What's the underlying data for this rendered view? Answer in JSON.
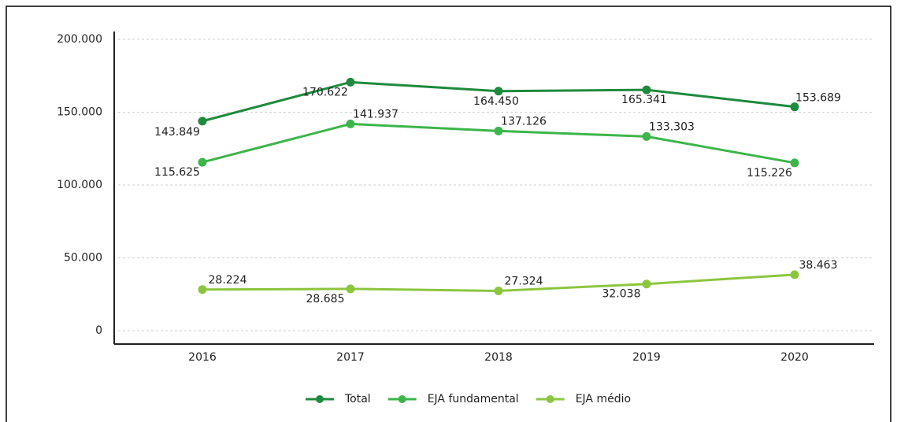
{
  "chart_data": {
    "type": "line",
    "categories": [
      "2016",
      "2017",
      "2018",
      "2019",
      "2020"
    ],
    "series": [
      {
        "name": "Total",
        "color": "#1e8a3e",
        "values": [
          143849,
          170622,
          164450,
          165341,
          153689
        ],
        "value_labels": [
          "143.849",
          "170.622",
          "164.450",
          "165.341",
          "153.689"
        ]
      },
      {
        "name": "EJA fundamental",
        "color": "#3cb54a",
        "values": [
          115625,
          141937,
          137126,
          133303,
          115226
        ],
        "value_labels": [
          "115.625",
          "141.937",
          "137.126",
          "133.303",
          "115.226"
        ]
      },
      {
        "name": "EJA médio",
        "color": "#8cc63f",
        "values": [
          28224,
          28685,
          27324,
          32038,
          38463
        ],
        "value_labels": [
          "28.224",
          "28.685",
          "27.324",
          "32.038",
          "38.463"
        ]
      }
    ],
    "ylim": [
      0,
      200000
    ],
    "yticks": [
      0,
      {
        "value": 50000,
        "label": "50.000"
      },
      {
        "value": 100000,
        "label": "100.000"
      },
      {
        "value": 150000,
        "label": "150.000"
      },
      {
        "value": 200000,
        "label": "200.000"
      }
    ],
    "grid": true,
    "legend": "bottom"
  }
}
